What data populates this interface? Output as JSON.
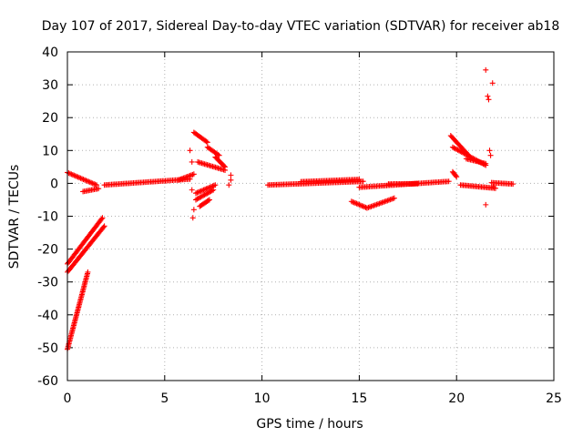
{
  "chart_data": {
    "type": "scatter",
    "title": "Day 107 of 2017, Sidereal Day-to-day VTEC variation (SDTVAR) for receiver ab18",
    "xlabel": "GPS time / hours",
    "ylabel": "SDTVAR / TECUs",
    "xlim": [
      0,
      25
    ],
    "ylim": [
      -60,
      40
    ],
    "x_ticks": [
      0,
      5,
      10,
      15,
      20,
      25
    ],
    "y_ticks": [
      -60,
      -50,
      -40,
      -30,
      -20,
      -10,
      0,
      10,
      20,
      30,
      40
    ],
    "grid": true,
    "marker": "+",
    "color": "#ff0000",
    "series": [
      {
        "name": "arc-falling-start",
        "segments": [
          [
            0.0,
            3.3,
            1.5,
            -0.5
          ]
        ]
      },
      {
        "name": "arc-small-near-1h",
        "segments": [
          [
            0.8,
            -2.5,
            1.6,
            -1.6
          ]
        ]
      },
      {
        "name": "arc-steep-rise",
        "segments": [
          [
            0.0,
            -50.5,
            1.05,
            -27.0
          ]
        ]
      },
      {
        "name": "arc-rise-to-minus10",
        "segments": [
          [
            0.0,
            -24.5,
            1.8,
            -10.5
          ]
        ]
      },
      {
        "name": "arc-rise-to-minus13",
        "segments": [
          [
            0.0,
            -27.0,
            1.9,
            -13.0
          ]
        ]
      },
      {
        "name": "arc-flat-morning",
        "segments": [
          [
            1.9,
            -0.5,
            6.3,
            1.3
          ]
        ]
      },
      {
        "name": "cluster-6h",
        "segments": [
          [
            5.7,
            1.0,
            6.5,
            2.8
          ]
        ]
      },
      {
        "name": "arc-7h-high",
        "segments": [
          [
            6.5,
            15.5,
            7.2,
            12.5
          ],
          [
            7.2,
            11.0,
            7.8,
            8.5
          ]
        ]
      },
      {
        "name": "arc-7h-mid",
        "segments": [
          [
            6.7,
            6.5,
            8.1,
            4.0
          ]
        ]
      },
      {
        "name": "arc-7h-low",
        "segments": [
          [
            6.6,
            -3.0,
            7.6,
            -0.5
          ],
          [
            6.6,
            -5.0,
            7.5,
            -2.0
          ]
        ]
      },
      {
        "name": "arc-7h-dip",
        "segments": [
          [
            6.8,
            -7.0,
            7.3,
            -5.0
          ]
        ]
      },
      {
        "name": "arc-8h-rise",
        "segments": [
          [
            7.6,
            8.0,
            8.1,
            5.0
          ]
        ]
      },
      {
        "name": "arc-midday",
        "segments": [
          [
            10.3,
            -0.5,
            15.2,
            0.6
          ],
          [
            12.0,
            0.5,
            15.0,
            1.2
          ]
        ]
      },
      {
        "name": "arc-afternoon",
        "segments": [
          [
            15.0,
            -1.2,
            19.6,
            0.6
          ],
          [
            16.5,
            -0.2,
            18.0,
            -0.1
          ]
        ]
      },
      {
        "name": "arc-15h-dip",
        "segments": [
          [
            14.6,
            -5.5,
            15.4,
            -7.5
          ],
          [
            15.4,
            -7.5,
            16.8,
            -4.5
          ]
        ]
      },
      {
        "name": "arc-20h-upper",
        "segments": [
          [
            19.7,
            14.5,
            20.7,
            8.0
          ]
        ]
      },
      {
        "name": "arc-20h-lower",
        "segments": [
          [
            19.8,
            11.0,
            21.5,
            5.5
          ],
          [
            20.5,
            7.5,
            21.5,
            6.0
          ]
        ]
      },
      {
        "name": "arc-20h-flat",
        "segments": [
          [
            19.8,
            3.5,
            20.0,
            2.0
          ],
          [
            20.2,
            -0.5,
            22.0,
            -1.5
          ]
        ]
      },
      {
        "name": "arc-22h-tail",
        "segments": [
          [
            21.8,
            0.2,
            22.9,
            -0.2
          ]
        ]
      },
      {
        "name": "isolated-points",
        "points": [
          [
            6.3,
            10.0
          ],
          [
            6.4,
            6.5
          ],
          [
            6.4,
            -2.0
          ],
          [
            6.45,
            -10.5
          ],
          [
            6.5,
            -8.0
          ],
          [
            8.4,
            2.5
          ],
          [
            8.4,
            1.0
          ],
          [
            8.3,
            -0.5
          ],
          [
            21.5,
            34.5
          ],
          [
            21.6,
            26.5
          ],
          [
            21.65,
            25.5
          ],
          [
            21.7,
            10.0
          ],
          [
            21.75,
            8.5
          ],
          [
            21.85,
            30.5
          ],
          [
            21.5,
            -6.5
          ],
          [
            21.9,
            -1.0
          ]
        ]
      }
    ]
  }
}
